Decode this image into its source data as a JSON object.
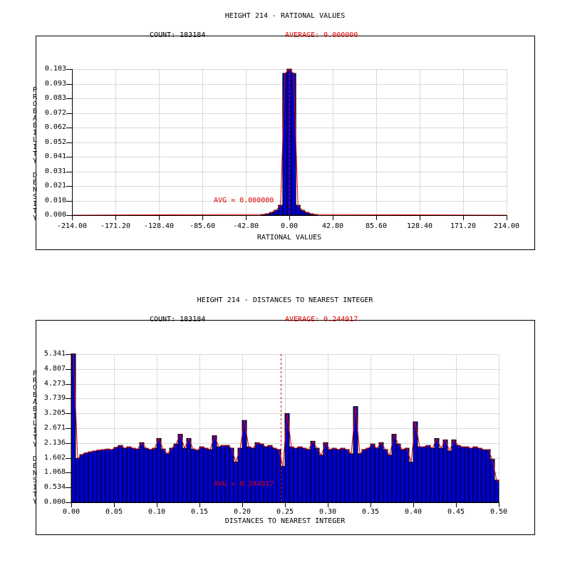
{
  "colors": {
    "bar": "#0000cc",
    "curve": "#dd0000",
    "grid": "#d9d9d9",
    "axis": "#000000",
    "text": "#000000",
    "accent_red": "#dd0000",
    "background": "#ffffff"
  },
  "charts": [
    {
      "title": "HEIGHT 214 - RATIONAL VALUES",
      "count_text": "COUNT: 183184",
      "average_text": "AVERAGE: 0.000000",
      "avg_note": "AVG = 0.000000",
      "chart_data": {
        "type": "bar",
        "title": "HEIGHT 214 - RATIONAL VALUES",
        "xlabel": "RATIONAL VALUES",
        "ylabel": "PROBABILITY DENSITY",
        "count": 183184,
        "average": 0.0,
        "xlim": [
          -214,
          214
        ],
        "ylim": [
          0,
          0.103
        ],
        "grid": true,
        "legend": "none",
        "x_tick_labels": [
          "-214.00",
          "-171.20",
          "-128.40",
          "-85.60",
          "-42.80",
          "0.00",
          "42.80",
          "85.60",
          "128.40",
          "171.20",
          "214.00"
        ],
        "y_tick_labels": [
          "0.103",
          "0.093",
          "0.083",
          "0.072",
          "0.062",
          "0.052",
          "0.041",
          "0.031",
          "0.021",
          "0.010",
          "0.000"
        ],
        "bin_width": 4.28,
        "bars": [
          [
            -25.68,
            0.0005
          ],
          [
            -21.4,
            0.001
          ],
          [
            -17.12,
            0.002
          ],
          [
            -12.84,
            0.0035
          ],
          [
            -8.56,
            0.007
          ],
          [
            -4.28,
            0.1
          ],
          [
            0.0,
            0.103
          ],
          [
            4.28,
            0.1
          ],
          [
            8.56,
            0.007
          ],
          [
            12.84,
            0.0035
          ],
          [
            17.12,
            0.002
          ],
          [
            21.4,
            0.001
          ],
          [
            25.68,
            0.0005
          ]
        ]
      }
    },
    {
      "title": "HEIGHT 214 - DISTANCES TO NEAREST INTEGER",
      "count_text": "COUNT: 183184",
      "average_text": "AVERAGE: 0.244917",
      "avg_note": "AVG = 0.244917",
      "chart_data": {
        "type": "bar",
        "title": "HEIGHT 214 - DISTANCES TO NEAREST INTEGER",
        "xlabel": "DISTANCES TO NEAREST INTEGER",
        "ylabel": "PROBABILITY DENSITY",
        "count": 183184,
        "average": 0.244917,
        "xlim": [
          0,
          0.5
        ],
        "ylim": [
          0,
          5.341
        ],
        "grid": true,
        "legend": "none",
        "x_tick_labels": [
          "0.00",
          "0.05",
          "0.10",
          "0.15",
          "0.20",
          "0.25",
          "0.30",
          "0.35",
          "0.40",
          "0.45",
          "0.50"
        ],
        "y_tick_labels": [
          "5.341",
          "4.807",
          "4.273",
          "3.739",
          "3.205",
          "2.671",
          "2.136",
          "1.602",
          "1.068",
          "0.534",
          "0.000"
        ],
        "bin_width": 0.005,
        "x_start": 0.0,
        "values": [
          5.35,
          1.58,
          1.72,
          1.78,
          1.82,
          1.85,
          1.88,
          1.9,
          1.92,
          1.9,
          1.98,
          2.05,
          1.95,
          2.0,
          1.95,
          1.92,
          2.15,
          1.95,
          1.9,
          1.95,
          2.3,
          1.92,
          1.75,
          1.95,
          2.1,
          2.45,
          1.95,
          2.3,
          1.92,
          1.88,
          2.0,
          1.95,
          1.9,
          2.4,
          2.0,
          2.05,
          2.05,
          1.95,
          1.45,
          1.95,
          2.95,
          2.0,
          1.95,
          2.15,
          2.1,
          2.0,
          2.05,
          1.95,
          1.9,
          1.3,
          3.2,
          2.0,
          1.95,
          2.0,
          1.95,
          1.9,
          2.2,
          1.95,
          1.7,
          2.15,
          1.9,
          1.95,
          1.9,
          1.95,
          1.9,
          1.75,
          3.45,
          1.75,
          1.9,
          1.95,
          2.1,
          1.95,
          2.15,
          1.9,
          1.7,
          2.45,
          2.1,
          1.9,
          1.95,
          1.45,
          2.9,
          2.0,
          2.0,
          2.05,
          1.95,
          2.3,
          1.95,
          2.25,
          1.85,
          2.25,
          2.05,
          2.0,
          2.0,
          1.95,
          2.0,
          1.95,
          1.9,
          1.9,
          1.55,
          0.8
        ]
      }
    }
  ]
}
